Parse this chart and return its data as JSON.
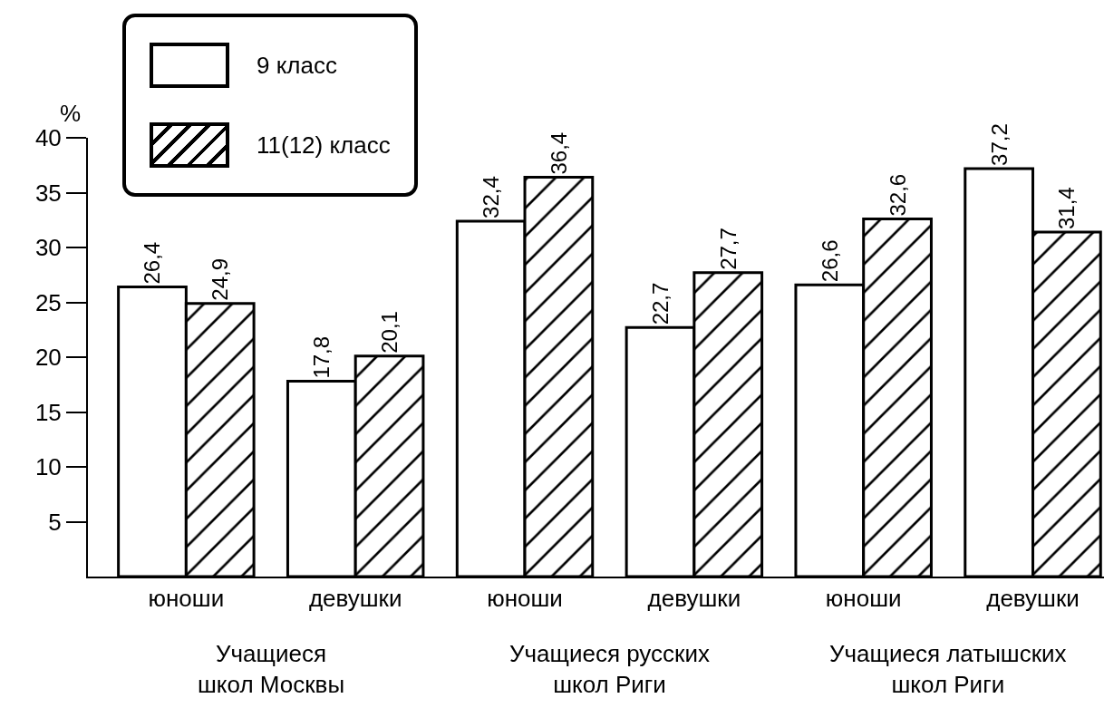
{
  "chart_data": {
    "type": "bar",
    "categories": [
      "юноши",
      "девушки",
      "юноши",
      "девушки",
      "юноши",
      "девушки"
    ],
    "series": [
      {
        "name": "9 класс",
        "color": "#ffffff",
        "values": [
          26.4,
          17.8,
          32.4,
          22.7,
          26.6,
          37.2
        ],
        "value_labels": [
          "26,4",
          "17,8",
          "32,4",
          "22,7",
          "26,6",
          "37,2"
        ]
      },
      {
        "name": "11(12) класс",
        "color": "#000000",
        "values": [
          24.9,
          20.1,
          36.4,
          27.7,
          32.6,
          31.4
        ],
        "value_labels": [
          "24,9",
          "20,1",
          "36,4",
          "27,7",
          "32,6",
          "31,4"
        ]
      }
    ],
    "ylabel": "%",
    "ylim": [
      0,
      40
    ],
    "yticks": [
      5,
      10,
      15,
      20,
      25,
      30,
      35,
      40
    ],
    "annotations": [
      "Учащиеся\nшкол Москвы",
      "Учащиеся русских\nшкол Риги",
      "Учащиеся латышских\nшкол Риги"
    ],
    "legend": "top left",
    "grid": false
  }
}
